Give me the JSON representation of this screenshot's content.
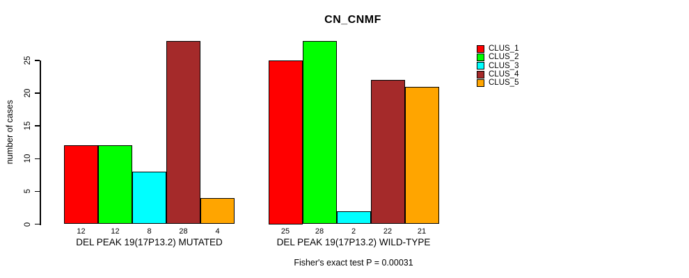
{
  "chart_data": {
    "type": "bar",
    "title": "CN_CNMF",
    "xlabel": "",
    "ylabel": "number of cases",
    "categories": [
      "DEL PEAK 19(17P13.2) MUTATED",
      "DEL PEAK 19(17P13.2) WILD-TYPE"
    ],
    "series": [
      {
        "name": "CLUS_1",
        "color": "#FF0000",
        "values": [
          12,
          25
        ]
      },
      {
        "name": "CLUS_2",
        "color": "#00FF00",
        "values": [
          12,
          28
        ]
      },
      {
        "name": "CLUS_3",
        "color": "#00FFFF",
        "values": [
          8,
          2
        ]
      },
      {
        "name": "CLUS_4",
        "color": "#A52A2A",
        "values": [
          28,
          22
        ]
      },
      {
        "name": "CLUS_5",
        "color": "#FFA500",
        "values": [
          4,
          21
        ]
      }
    ],
    "yticks": [
      0,
      5,
      10,
      15,
      20,
      25
    ],
    "ylim": [
      0,
      28
    ],
    "bar_value_labels": true,
    "grid": false,
    "legend_position": "right",
    "annotation": "Fisher's exact test P = 0.00031"
  }
}
